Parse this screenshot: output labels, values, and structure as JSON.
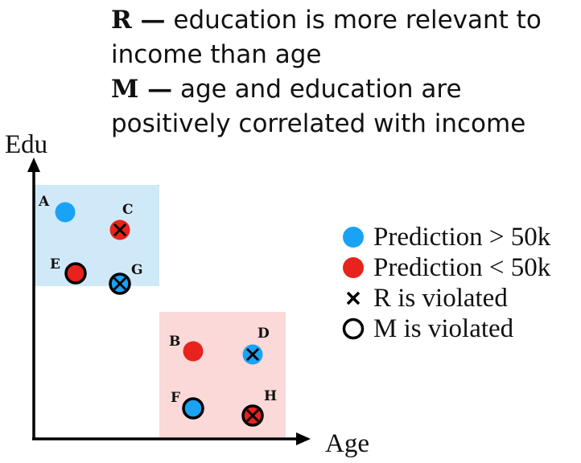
{
  "caption": {
    "lines": [
      {
        "key": "R —",
        "text": " education is more relevant to"
      },
      {
        "key": "",
        "text": "income than age"
      },
      {
        "key": "M —",
        "text": " age and education are"
      },
      {
        "key": "",
        "text": "positively correlated with income"
      }
    ]
  },
  "axes": {
    "y_label": "Edu",
    "x_label": "Age"
  },
  "colors": {
    "blue": "#1aa3f5",
    "red": "#e8221c",
    "blue_region": "#cfe9f8",
    "red_region": "#fad9d8"
  },
  "points": [
    {
      "label": "A",
      "fill": "blue",
      "cross": false,
      "ring": false
    },
    {
      "label": "C",
      "fill": "red",
      "cross": true,
      "ring": false
    },
    {
      "label": "E",
      "fill": "red",
      "cross": false,
      "ring": true
    },
    {
      "label": "G",
      "fill": "blue",
      "cross": true,
      "ring": true
    },
    {
      "label": "B",
      "fill": "red",
      "cross": false,
      "ring": false
    },
    {
      "label": "D",
      "fill": "blue",
      "cross": true,
      "ring": false
    },
    {
      "label": "F",
      "fill": "blue",
      "cross": false,
      "ring": true
    },
    {
      "label": "H",
      "fill": "red",
      "cross": true,
      "ring": true
    }
  ],
  "legend": [
    {
      "symbol": "blue-dot",
      "text": "Prediction > 50k"
    },
    {
      "symbol": "red-dot",
      "text": "Prediction < 50k"
    },
    {
      "symbol": "cross",
      "text": "R is violated"
    },
    {
      "symbol": "ring",
      "text": "M is violated"
    }
  ]
}
